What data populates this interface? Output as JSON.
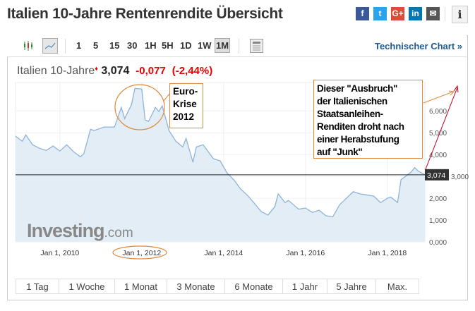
{
  "page": {
    "title": "Italien 10-Jahre Rentenrendite Übersicht",
    "social": [
      {
        "icon": "facebook-icon",
        "glyph": "f",
        "color": "#3b5998"
      },
      {
        "icon": "twitter-icon",
        "glyph": "t",
        "color": "#2aa3ef"
      },
      {
        "icon": "google-plus-icon",
        "glyph": "G+",
        "color": "#dd4b39"
      },
      {
        "icon": "linkedin-icon",
        "glyph": "in",
        "color": "#0077b5"
      },
      {
        "icon": "email-icon",
        "glyph": "✉",
        "color": "#555555"
      }
    ],
    "info_glyph": "i"
  },
  "toolbar": {
    "timeframes": [
      "1",
      "5",
      "15",
      "30",
      "1H",
      "5H",
      "1D",
      "1W",
      "1M"
    ],
    "active_timeframe": "1M",
    "technical_chart": "Technischer Chart »"
  },
  "quote": {
    "name": "Italien 10-Jahre",
    "price": "3,074",
    "change": "-0,077",
    "change_pct": "(-2,44%)",
    "down_color": "#e00000"
  },
  "chart_data": {
    "type": "area",
    "ylim": [
      0,
      7.3
    ],
    "yticks": [
      "0,000",
      "1,000",
      "2,000",
      "3,000",
      "4,000",
      "5,000",
      "6,000"
    ],
    "ytick_values": [
      0,
      1,
      2,
      3,
      4,
      5,
      6
    ],
    "xticks": [
      "Jan 1, 2010",
      "Jan 1, 2012",
      "Jan 1, 2014",
      "Jan 1, 2016",
      "Jan 1, 2018"
    ],
    "xtick_values": [
      "2010-01",
      "2012-01",
      "2014-01",
      "2016-01",
      "2018-01"
    ],
    "xlim": [
      "2008-12",
      "2018-12"
    ],
    "current_value": 3.074,
    "current_label": "3,074",
    "line_color": "#8fb3d9",
    "fill_color": "#e3edf5",
    "points": [
      [
        "2008-12",
        4.84
      ],
      [
        "2009-02",
        4.61
      ],
      [
        "2009-03",
        4.9
      ],
      [
        "2009-05",
        4.45
      ],
      [
        "2009-07",
        4.29
      ],
      [
        "2009-09",
        4.19
      ],
      [
        "2009-11",
        4.39
      ],
      [
        "2010-01",
        4.16
      ],
      [
        "2010-03",
        4.45
      ],
      [
        "2010-05",
        4.13
      ],
      [
        "2010-07",
        3.9
      ],
      [
        "2010-08",
        4.03
      ],
      [
        "2010-10",
        5.16
      ],
      [
        "2010-11",
        5.1
      ],
      [
        "2011-02",
        5.26
      ],
      [
        "2011-05",
        5.26
      ],
      [
        "2011-07",
        6.16
      ],
      [
        "2011-08",
        5.65
      ],
      [
        "2011-10",
        6.29
      ],
      [
        "2011-11",
        7.03
      ],
      [
        "2012-01",
        7.0
      ],
      [
        "2012-02",
        5.58
      ],
      [
        "2012-03",
        5.52
      ],
      [
        "2012-05",
        6.16
      ],
      [
        "2012-06",
        5.97
      ],
      [
        "2012-07",
        6.23
      ],
      [
        "2012-09",
        5.1
      ],
      [
        "2012-11",
        4.61
      ],
      [
        "2013-01",
        4.35
      ],
      [
        "2013-02",
        4.74
      ],
      [
        "2013-04",
        3.65
      ],
      [
        "2013-05",
        4.35
      ],
      [
        "2013-07",
        4.45
      ],
      [
        "2013-10",
        3.81
      ],
      [
        "2013-12",
        3.71
      ],
      [
        "2014-02",
        3.16
      ],
      [
        "2014-04",
        2.84
      ],
      [
        "2014-06",
        2.42
      ],
      [
        "2014-08",
        2.13
      ],
      [
        "2014-10",
        1.77
      ],
      [
        "2014-12",
        1.39
      ],
      [
        "2015-02",
        1.23
      ],
      [
        "2015-04",
        1.61
      ],
      [
        "2015-05",
        2.2
      ],
      [
        "2015-07",
        1.8
      ],
      [
        "2015-08",
        1.9
      ],
      [
        "2015-11",
        1.5
      ],
      [
        "2016-01",
        1.55
      ],
      [
        "2016-03",
        1.35
      ],
      [
        "2016-05",
        1.45
      ],
      [
        "2016-07",
        1.2
      ],
      [
        "2016-09",
        1.15
      ],
      [
        "2016-11",
        1.7
      ],
      [
        "2017-01",
        2.0
      ],
      [
        "2017-03",
        2.3
      ],
      [
        "2017-05",
        2.2
      ],
      [
        "2017-07",
        2.15
      ],
      [
        "2017-09",
        2.1
      ],
      [
        "2017-11",
        1.8
      ],
      [
        "2018-01",
        2.0
      ],
      [
        "2018-02",
        2.05
      ],
      [
        "2018-04",
        1.8
      ],
      [
        "2018-05",
        2.85
      ],
      [
        "2018-08",
        3.2
      ],
      [
        "2018-09",
        3.4
      ],
      [
        "2018-10",
        3.25
      ],
      [
        "2018-12",
        3.074
      ]
    ],
    "watermark": "Investing.com",
    "annotations": {
      "euro_crisis": "Euro-Krise 2012",
      "euro_crisis_lines": [
        "Euro-",
        "Krise",
        "2012"
      ],
      "breakout_lines": [
        "Dieser \"Ausbruch\"",
        "der Italienischen",
        "Staatsanleihen-",
        "Renditen droht nach",
        "einer Herabstufung",
        "auf \"Junk\""
      ],
      "annotation_color": "#e08a3c",
      "arrow_color": "#c00020"
    }
  },
  "ranges": [
    "1 Tag",
    "1 Woche",
    "1 Monat",
    "3 Monate",
    "6 Monate",
    "1 Jahr",
    "5 Jahre",
    "Max."
  ]
}
